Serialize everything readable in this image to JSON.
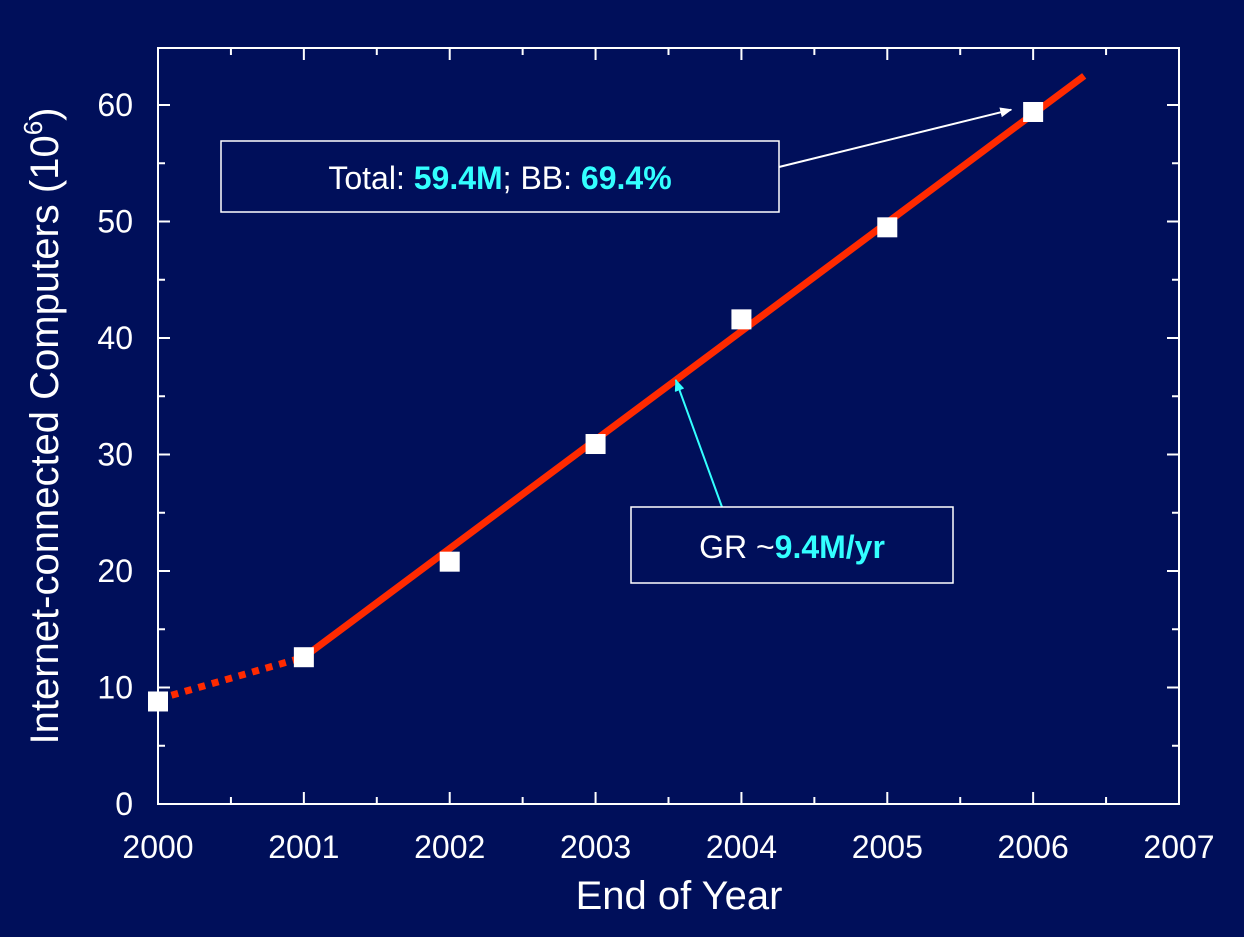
{
  "chart_data": {
    "type": "scatter",
    "xlabel": "End of Year",
    "ylabel_main": "Internet-connected Computers (10",
    "ylabel_sup": "6",
    "ylabel_close": ")",
    "xlim": [
      2000,
      2007
    ],
    "ylim": [
      0,
      65
    ],
    "x_ticks": [
      "2000",
      "2001",
      "2002",
      "2003",
      "2004",
      "2005",
      "2006",
      "2007"
    ],
    "x_tick_values": [
      2000,
      2001,
      2002,
      2003,
      2004,
      2005,
      2006,
      2007
    ],
    "y_ticks": [
      "0",
      "10",
      "20",
      "30",
      "40",
      "50",
      "60"
    ],
    "y_tick_values": [
      0,
      10,
      20,
      30,
      40,
      50,
      60
    ],
    "series": [
      {
        "x": [
          2000,
          2001,
          2002,
          2003,
          2004,
          2005,
          2006
        ],
        "y": [
          8.8,
          12.6,
          20.8,
          30.9,
          41.6,
          49.5,
          59.4
        ],
        "marker": "square",
        "color": "#ffffff"
      }
    ],
    "fit_line": {
      "x": [
        2001,
        2006.35
      ],
      "y": [
        12.6,
        62.5
      ],
      "color": "#ff2a00",
      "style": "solid"
    },
    "extrapolation": {
      "x": [
        2000,
        2001
      ],
      "y": [
        9.0,
        12.6
      ],
      "color": "#ff2a00",
      "style": "dotted"
    },
    "annotations": {
      "total": {
        "prefix": "Total: ",
        "value1": "59.4M",
        "middle": "; BB: ",
        "value2": "69.4%",
        "arrow_to": [
          2005.85,
          59.6
        ],
        "arrow_color": "#ffffff"
      },
      "growth": {
        "prefix": "GR ~",
        "value": "9.4M/yr",
        "arrow_to": [
          2003.55,
          36.4
        ],
        "arrow_color": "#33ffff"
      }
    },
    "colors": {
      "background": "#000f5a",
      "axes": "#ffffff",
      "highlight": "#33ffff",
      "fit": "#ff2a00"
    }
  }
}
